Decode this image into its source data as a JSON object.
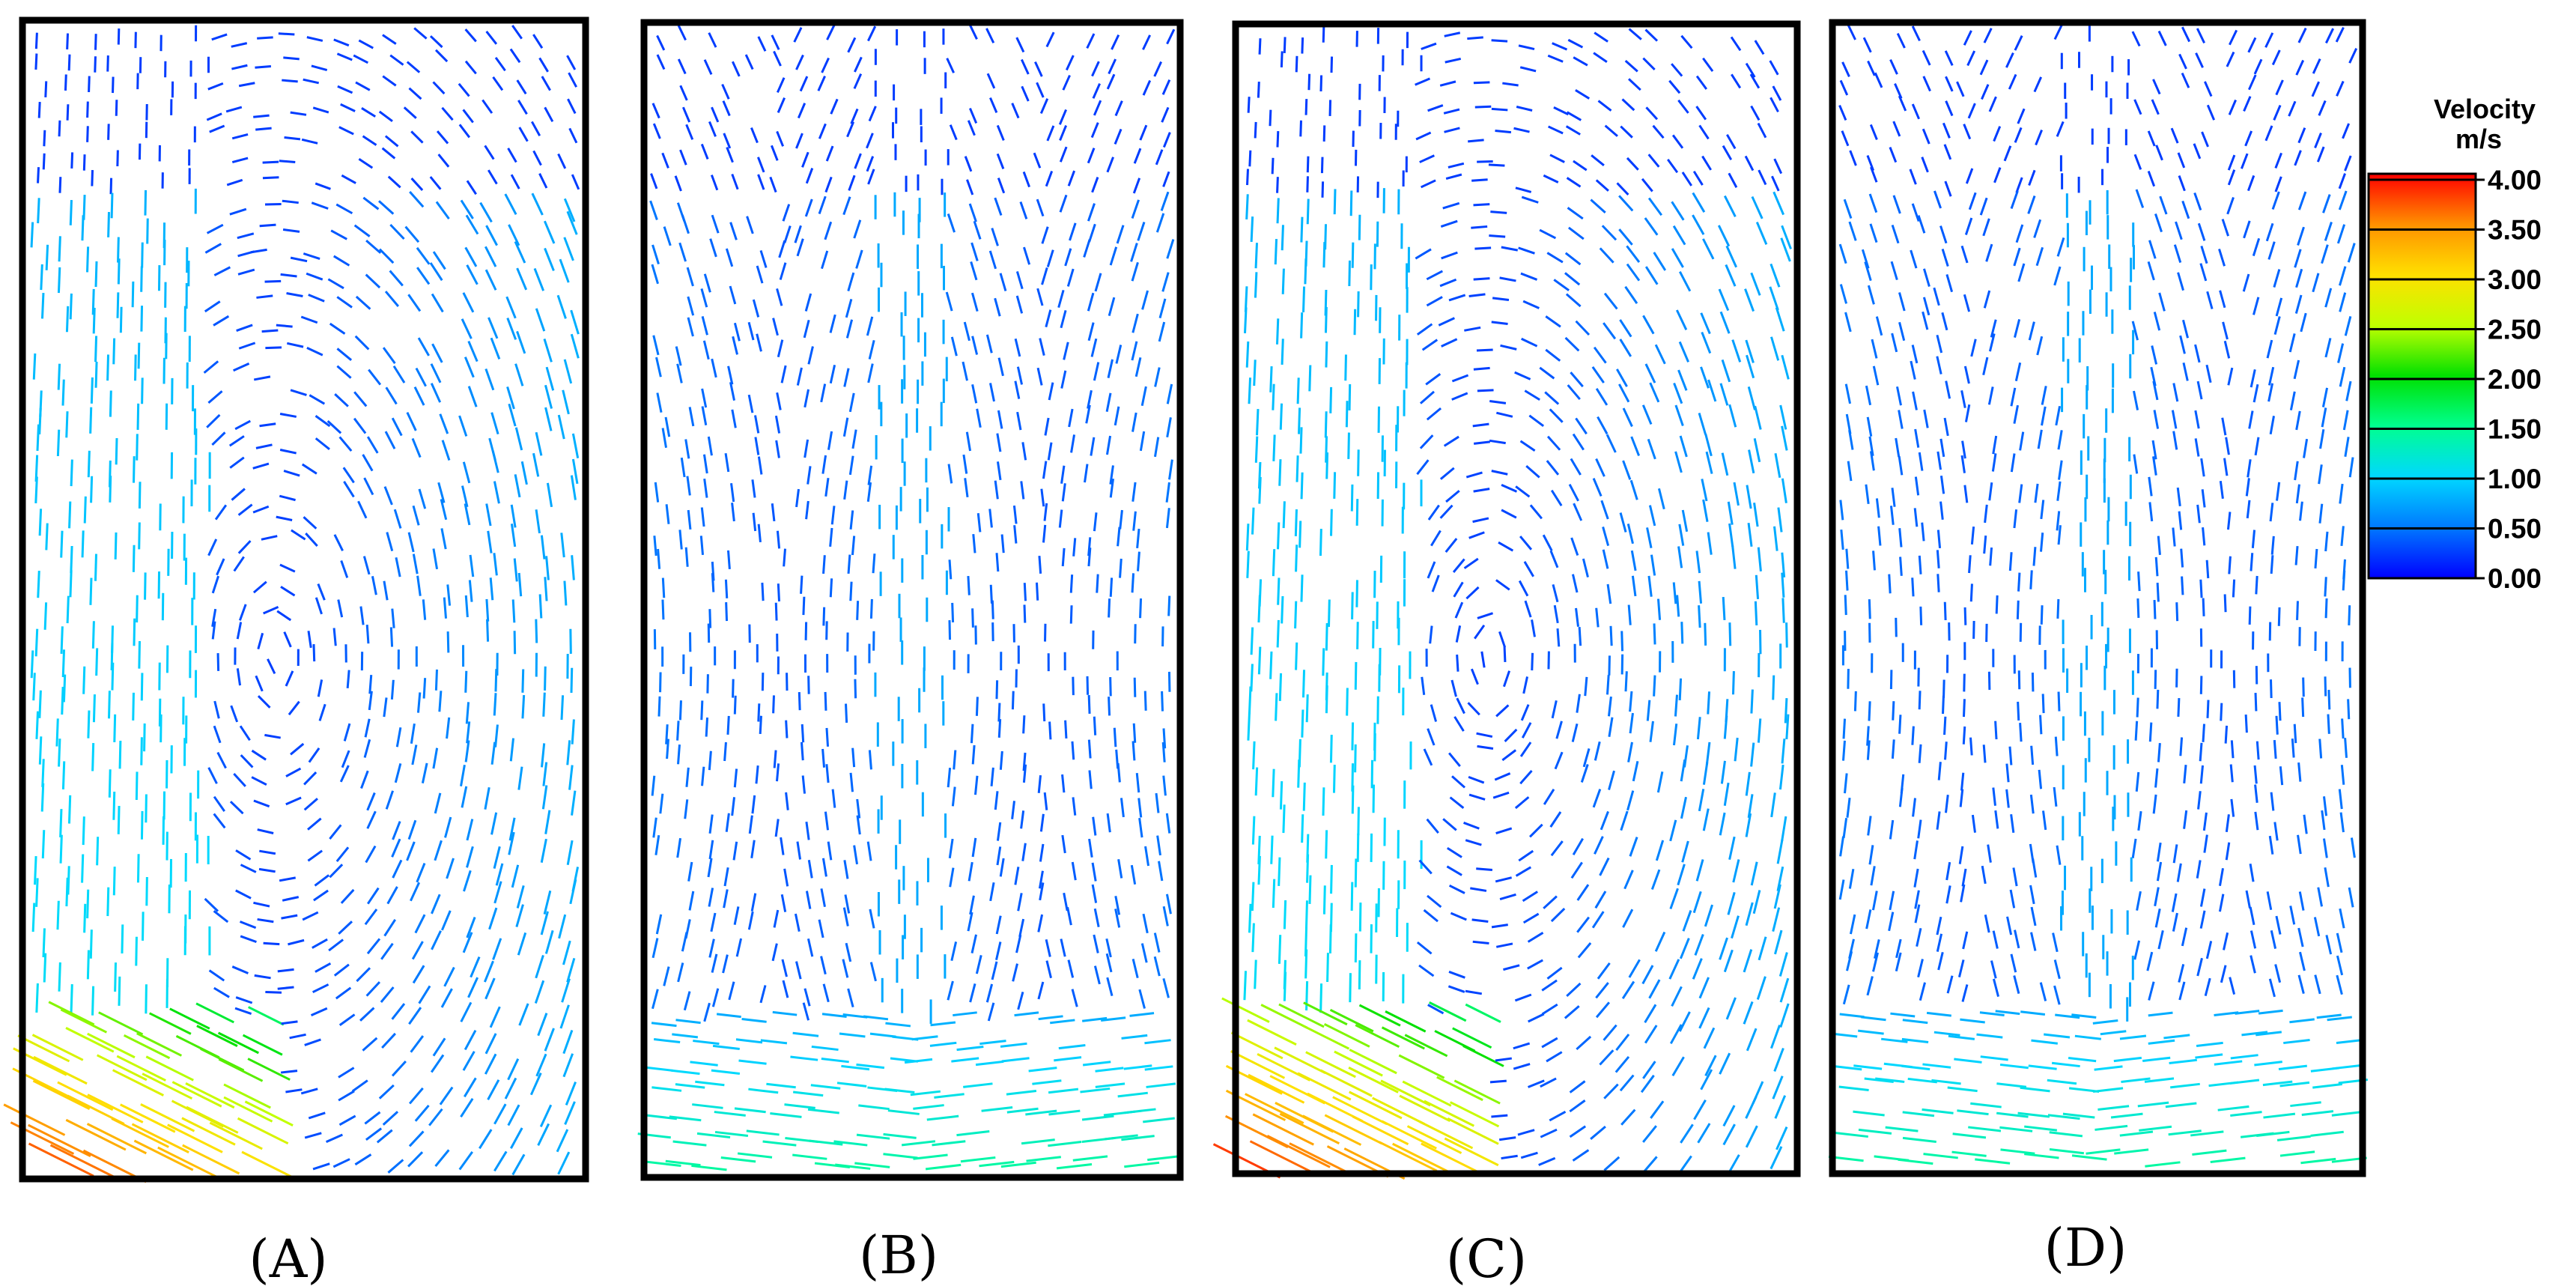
{
  "panels": [
    {
      "id": "A",
      "label": "(A)",
      "pattern": "single-left"
    },
    {
      "id": "B",
      "label": "(B)",
      "pattern": "double"
    },
    {
      "id": "C",
      "label": "(C)",
      "pattern": "single-left"
    },
    {
      "id": "D",
      "label": "(D)",
      "pattern": "double"
    }
  ],
  "legend": {
    "title_line1": "Velocity",
    "title_line2": "m/s",
    "ticks": [
      "4.00",
      "3.50",
      "3.00",
      "2.50",
      "2.00",
      "1.50",
      "1.00",
      "0.50",
      "0.00"
    ],
    "min": 0,
    "max": 4,
    "colors": [
      "#0000ff",
      "#0078ff",
      "#00d8ff",
      "#00ff90",
      "#00e000",
      "#c0ff00",
      "#ffe000",
      "#ff9000",
      "#ff0000"
    ]
  }
}
